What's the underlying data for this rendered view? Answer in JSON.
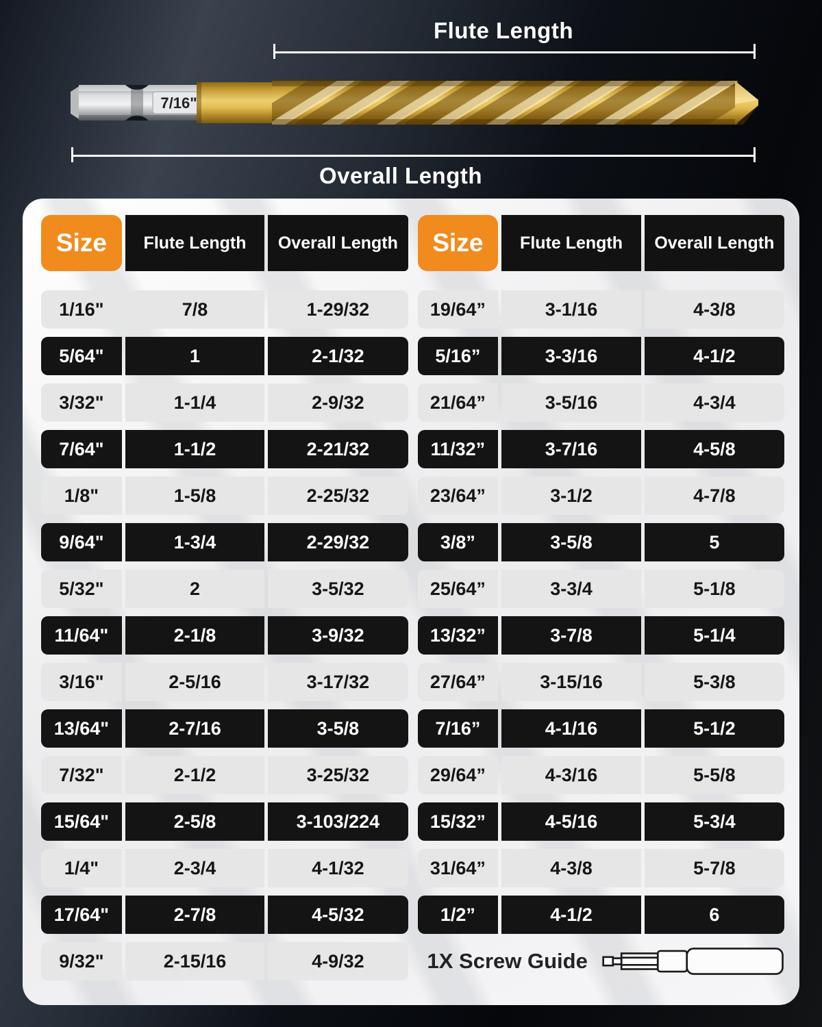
{
  "diagram": {
    "flute_label": "Flute Length",
    "overall_label": "Overall Length",
    "shank_marking": "7/16\""
  },
  "tables": {
    "headers": {
      "size": "Size",
      "flute": "Flute Length",
      "overall": "Overall Length"
    },
    "left": {
      "rows": [
        {
          "size": "1/16\"",
          "flute": "7/8",
          "overall": "1-29/32"
        },
        {
          "size": "5/64\"",
          "flute": "1",
          "overall": "2-1/32"
        },
        {
          "size": "3/32\"",
          "flute": "1-1/4",
          "overall": "2-9/32"
        },
        {
          "size": "7/64\"",
          "flute": "1-1/2",
          "overall": "2-21/32"
        },
        {
          "size": "1/8\"",
          "flute": "1-5/8",
          "overall": "2-25/32"
        },
        {
          "size": "9/64\"",
          "flute": "1-3/4",
          "overall": "2-29/32"
        },
        {
          "size": "5/32\"",
          "flute": "2",
          "overall": "3-5/32"
        },
        {
          "size": "11/64\"",
          "flute": "2-1/8",
          "overall": "3-9/32"
        },
        {
          "size": "3/16\"",
          "flute": "2-5/16",
          "overall": "3-17/32"
        },
        {
          "size": "13/64\"",
          "flute": "2-7/16",
          "overall": "3-5/8"
        },
        {
          "size": "7/32\"",
          "flute": "2-1/2",
          "overall": "3-25/32"
        },
        {
          "size": "15/64\"",
          "flute": "2-5/8",
          "overall": "3-103/224"
        },
        {
          "size": "1/4\"",
          "flute": "2-3/4",
          "overall": "4-1/32"
        },
        {
          "size": "17/64\"",
          "flute": "2-7/8",
          "overall": "4-5/32"
        },
        {
          "size": "9/32\"",
          "flute": "2-15/16",
          "overall": "4-9/32"
        }
      ]
    },
    "right": {
      "rows": [
        {
          "size": "19/64”",
          "flute": "3-1/16",
          "overall": "4-3/8"
        },
        {
          "size": "5/16”",
          "flute": "3-3/16",
          "overall": "4-1/2"
        },
        {
          "size": "21/64”",
          "flute": "3-5/16",
          "overall": "4-3/4"
        },
        {
          "size": "11/32”",
          "flute": "3-7/16",
          "overall": "4-5/8"
        },
        {
          "size": "23/64”",
          "flute": "3-1/2",
          "overall": "4-7/8"
        },
        {
          "size": "3/8”",
          "flute": "3-5/8",
          "overall": "5"
        },
        {
          "size": "25/64”",
          "flute": "3-3/4",
          "overall": "5-1/8"
        },
        {
          "size": "13/32”",
          "flute": "3-7/8",
          "overall": "5-1/4"
        },
        {
          "size": "27/64”",
          "flute": "3-15/16",
          "overall": "5-3/8"
        },
        {
          "size": "7/16”",
          "flute": "4-1/16",
          "overall": "5-1/2"
        },
        {
          "size": "29/64”",
          "flute": "4-3/16",
          "overall": "5-5/8"
        },
        {
          "size": "15/32”",
          "flute": "4-5/16",
          "overall": "5-3/4"
        },
        {
          "size": "31/64”",
          "flute": "4-3/8",
          "overall": "5-7/8"
        },
        {
          "size": "1/2”",
          "flute": "4-1/2",
          "overall": "6"
        }
      ],
      "footer_note": "1X Screw Guide"
    }
  },
  "colors": {
    "accent_orange": "#F18B1E",
    "row_dark": "#141414",
    "row_light": "#E6E6E6",
    "bracket_white": "#FFFFFF"
  }
}
